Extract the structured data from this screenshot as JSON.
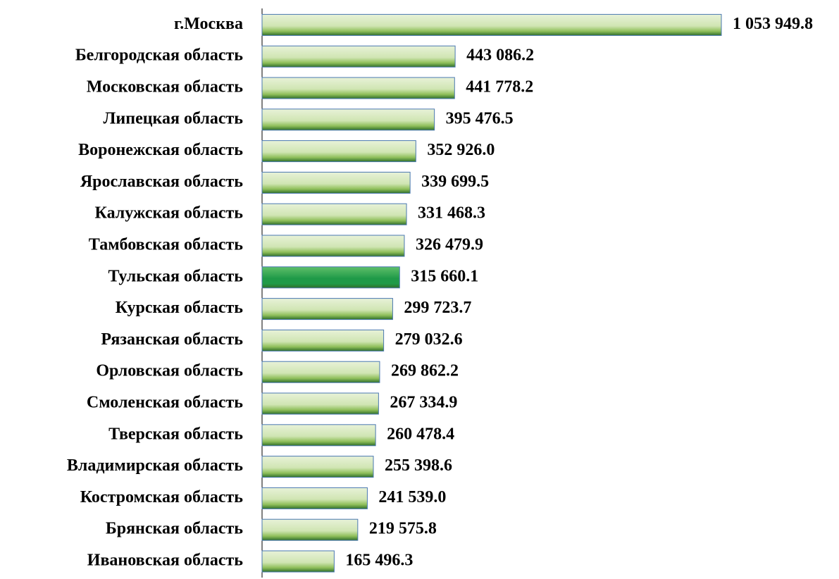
{
  "chart_data": {
    "type": "barh",
    "categories": [
      "г.Москва",
      "Белгородская область",
      "Московская область",
      "Липецкая область",
      "Воронежская область",
      "Ярославская область",
      "Калужская область",
      "Тамбовская область",
      "Тульская область",
      "Курская область",
      "Рязанская область",
      "Орловская область",
      "Смоленская область",
      "Тверская область",
      "Владимирская область",
      "Костромская область",
      "Брянская область",
      "Ивановская область"
    ],
    "values": [
      1053949.8,
      443086.2,
      441778.2,
      395476.5,
      352926.0,
      339699.5,
      331468.3,
      326479.9,
      315660.1,
      299723.7,
      279032.6,
      269862.2,
      267334.9,
      260478.4,
      255398.6,
      241539.0,
      219575.8,
      165496.3
    ],
    "value_labels": [
      "1 053 949.8",
      "443 086.2",
      "441 778.2",
      "395 476.5",
      "352 926.0",
      "339 699.5",
      "331 468.3",
      "326 479.9",
      "315 660.1",
      "299 723.7",
      "279 032.6",
      "269 862.2",
      "267 334.9",
      "260 478.4",
      "255 398.6",
      "241 539.0",
      "219 575.8",
      "165 496.3"
    ],
    "colors": [
      "#8fbf5a",
      "#8fbf5a",
      "#8fbf5a",
      "#8fbf5a",
      "#8fbf5a",
      "#8fbf5a",
      "#8fbf5a",
      "#8fbf5a",
      "#1f9a48",
      "#8fbf5a",
      "#8fbf5a",
      "#8fbf5a",
      "#8fbf5a",
      "#8fbf5a",
      "#8fbf5a",
      "#8fbf5a",
      "#8fbf5a",
      "#8fbf5a"
    ]
  }
}
